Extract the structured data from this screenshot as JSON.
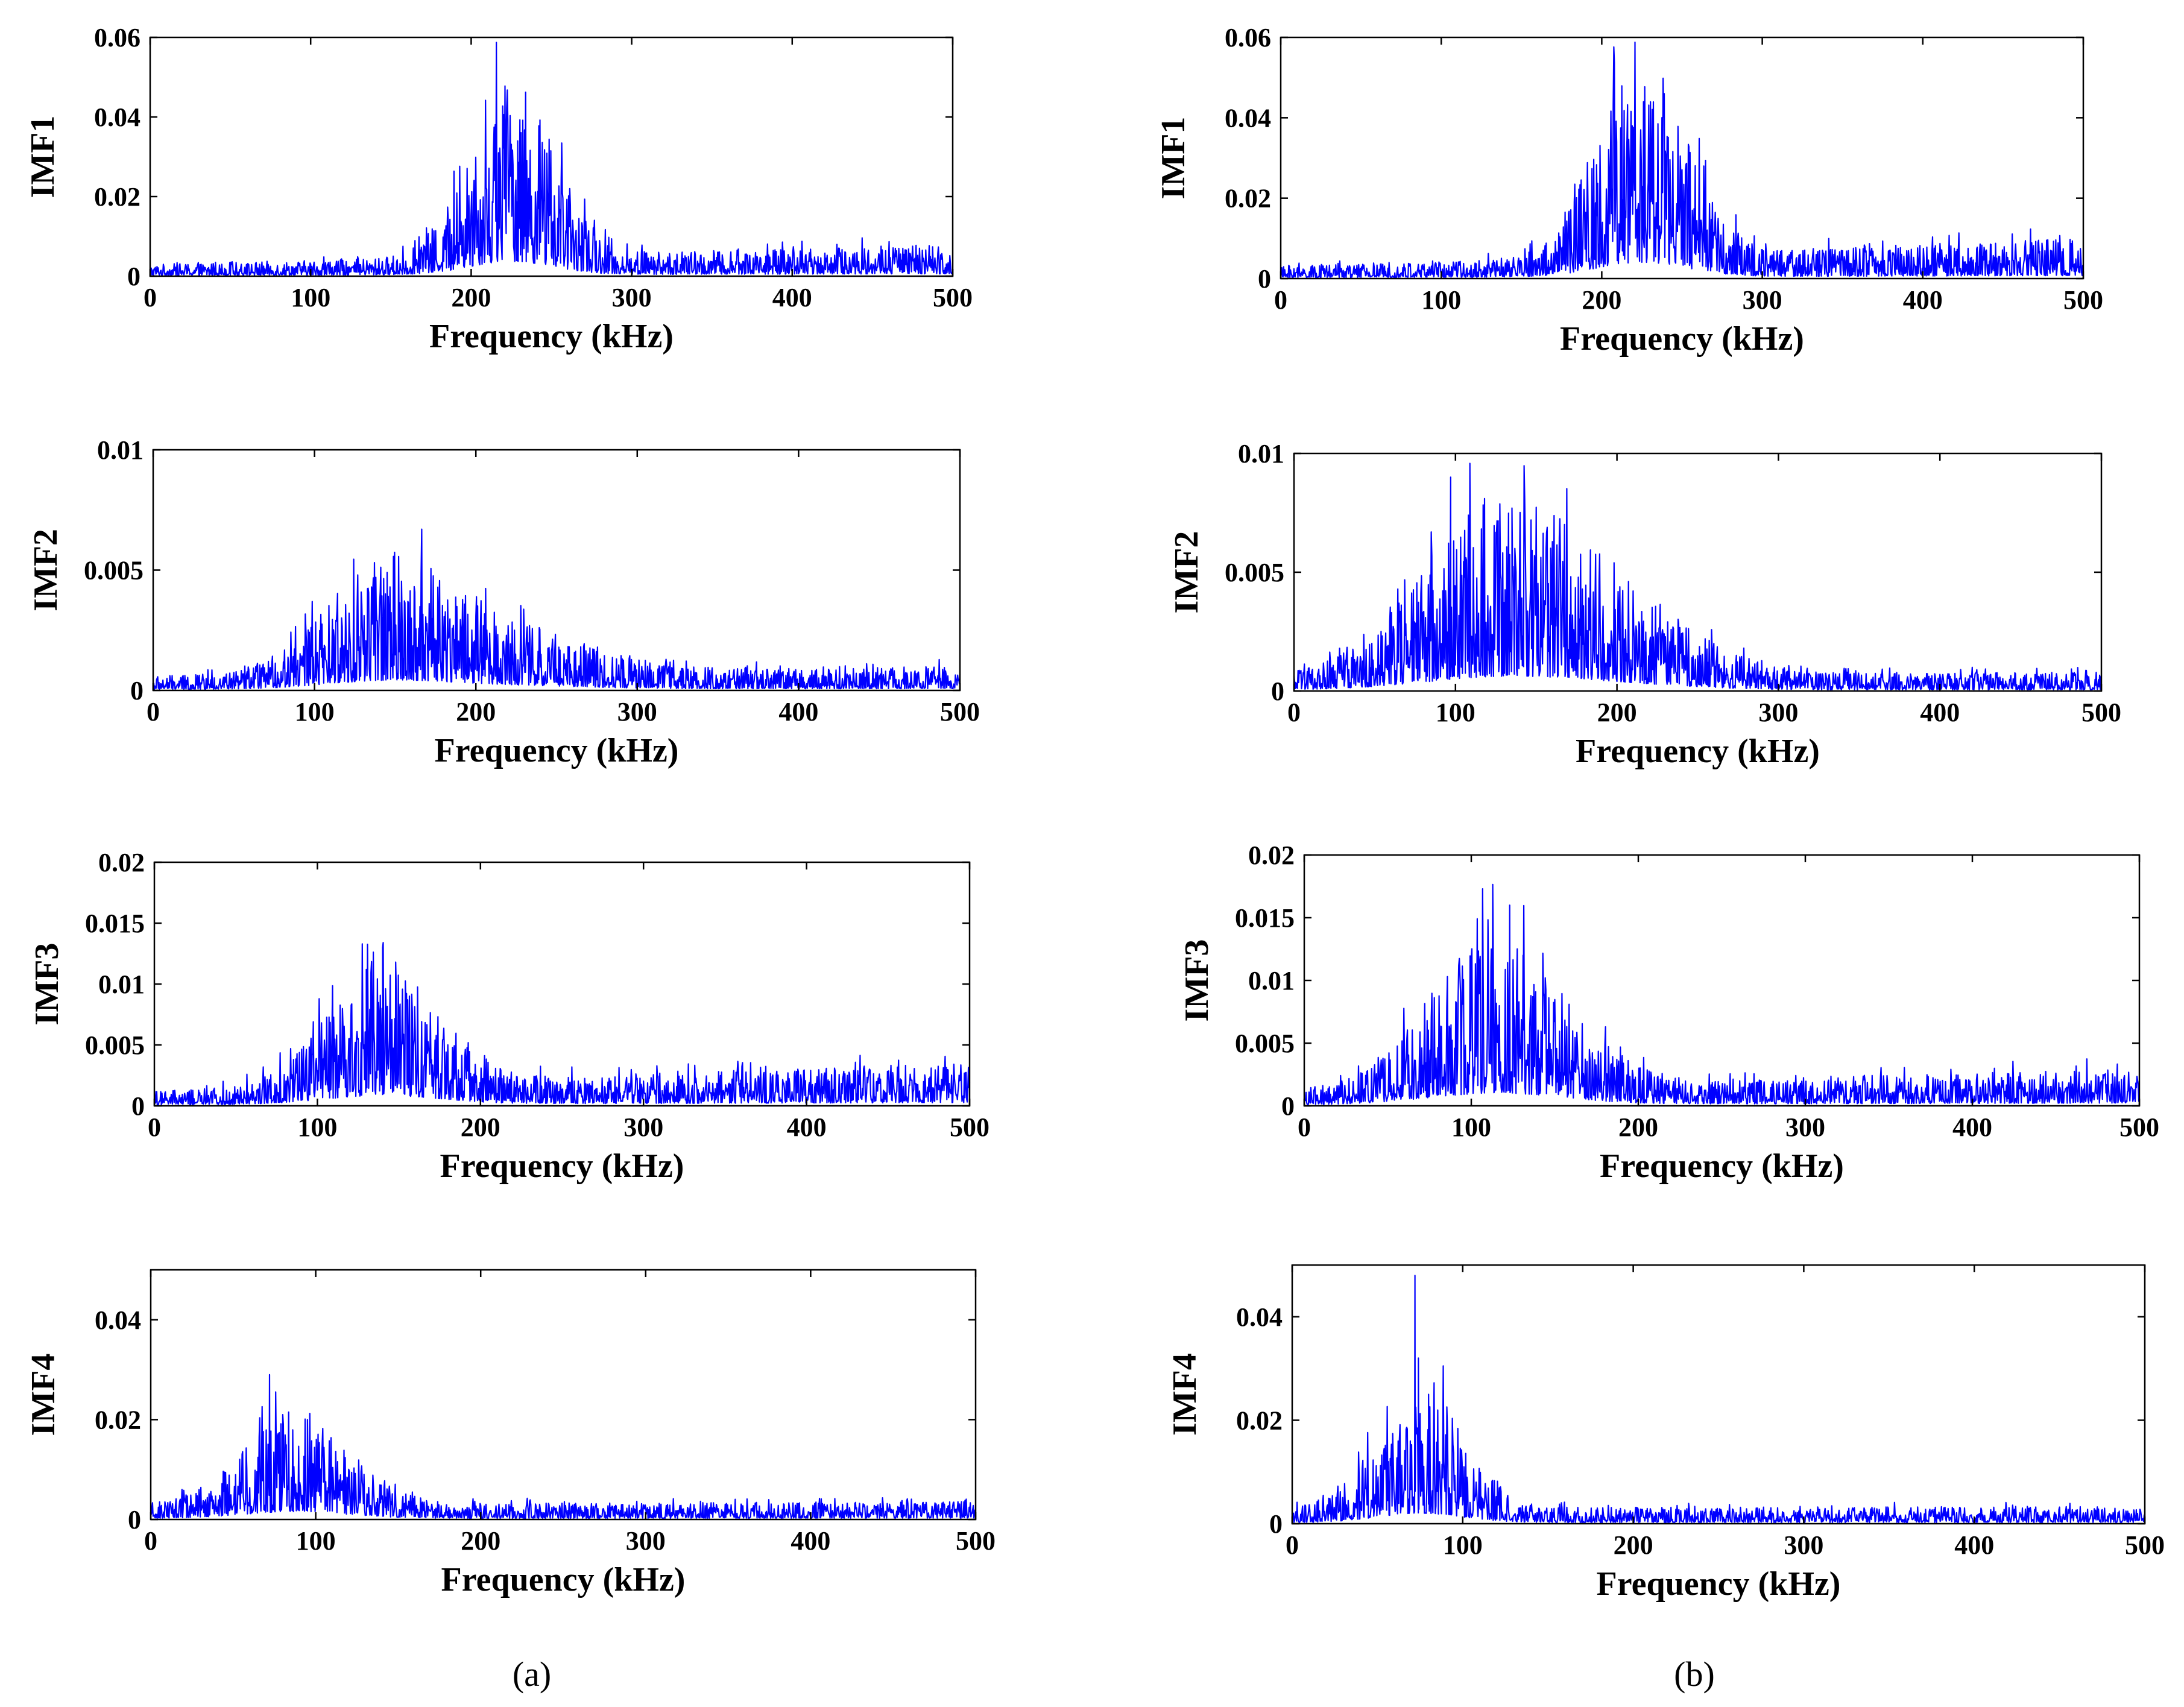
{
  "figure": {
    "captions": [
      "(a)",
      "(b)"
    ]
  },
  "chart_data": [
    {
      "type": "line",
      "id": "a1",
      "column": "a",
      "ylabel": "IMF1",
      "xlabel": "Frequency (kHz)",
      "xlim": [
        0,
        500
      ],
      "ylim": [
        0,
        0.06
      ],
      "xticks": [
        "0",
        "100",
        "200",
        "300",
        "400",
        "500"
      ],
      "yticks": [
        "0",
        "0.02",
        "0.04",
        "0.06"
      ],
      "series": [
        {
          "name": "IMF1 spectrum",
          "color": "#0000ff",
          "noise_floor": 0.0015,
          "tail_level": 0.0025,
          "peaks": [
            {
              "center": 225,
              "width": 26,
              "amplitude": 0.022
            }
          ],
          "spikes": [
            {
              "x": 222,
              "value": 0.039
            },
            {
              "x": 229,
              "value": 0.034
            },
            {
              "x": 217,
              "value": 0.031
            }
          ]
        }
      ]
    },
    {
      "type": "line",
      "id": "b1",
      "column": "b",
      "ylabel": "IMF1",
      "xlabel": "Frequency (kHz)",
      "xlim": [
        0,
        500
      ],
      "ylim": [
        0,
        0.06
      ],
      "xticks": [
        "0",
        "100",
        "200",
        "300",
        "400",
        "500"
      ],
      "yticks": [
        "0",
        "0.02",
        "0.04",
        "0.06"
      ],
      "series": [
        {
          "name": "IMF1 spectrum",
          "color": "#0000ff",
          "noise_floor": 0.0015,
          "tail_level": 0.0035,
          "peaks": [
            {
              "center": 225,
              "width": 28,
              "amplitude": 0.024
            }
          ],
          "spikes": [
            {
              "x": 226,
              "value": 0.044
            },
            {
              "x": 219,
              "value": 0.038
            },
            {
              "x": 232,
              "value": 0.036
            }
          ]
        }
      ]
    },
    {
      "type": "line",
      "id": "a2",
      "column": "a",
      "ylabel": "IMF2",
      "xlabel": "Frequency (kHz)",
      "xlim": [
        0,
        500
      ],
      "ylim": [
        0,
        0.01
      ],
      "xticks": [
        "0",
        "100",
        "200",
        "300",
        "400",
        "500"
      ],
      "yticks": [
        "0",
        "0.005",
        "0.01"
      ],
      "series": [
        {
          "name": "IMF2 spectrum",
          "color": "#0000ff",
          "noise_floor": 0.0003,
          "tail_level": 0.0002,
          "peaks": [
            {
              "center": 145,
              "width": 38,
              "amplitude": 0.0022
            },
            {
              "center": 220,
              "width": 50,
              "amplitude": 0.0009
            }
          ],
          "spikes": [
            {
              "x": 145,
              "value": 0.0049
            },
            {
              "x": 138,
              "value": 0.0047
            }
          ]
        }
      ]
    },
    {
      "type": "line",
      "id": "b2",
      "column": "b",
      "ylabel": "IMF2",
      "xlabel": "Frequency (kHz)",
      "xlim": [
        0,
        500
      ],
      "ylim": [
        0,
        0.01
      ],
      "xticks": [
        "0",
        "100",
        "200",
        "300",
        "400",
        "500"
      ],
      "yticks": [
        "0",
        "0.005",
        "0.01"
      ],
      "series": [
        {
          "name": "IMF2 spectrum",
          "color": "#0000ff",
          "noise_floor": 0.0003,
          "tail_level": 0.0001,
          "peaks": [
            {
              "center": 130,
              "width": 50,
              "amplitude": 0.0036
            },
            {
              "center": 210,
              "width": 45,
              "amplitude": 0.001
            }
          ],
          "spikes": [
            {
              "x": 97,
              "value": 0.009
            },
            {
              "x": 118,
              "value": 0.0081
            },
            {
              "x": 135,
              "value": 0.0077
            },
            {
              "x": 108,
              "value": 0.0074
            }
          ]
        }
      ]
    },
    {
      "type": "line",
      "id": "a3",
      "column": "a",
      "ylabel": "IMF3",
      "xlabel": "Frequency (kHz)",
      "xlim": [
        0,
        500
      ],
      "ylim": [
        0,
        0.02
      ],
      "xticks": [
        "0",
        "100",
        "200",
        "300",
        "400",
        "500"
      ],
      "yticks": [
        "0",
        "0.005",
        "0.01",
        "0.015",
        "0.02"
      ],
      "series": [
        {
          "name": "IMF3 spectrum",
          "color": "#0000ff",
          "noise_floor": 0.0006,
          "tail_level": 0.0012,
          "peaks": [
            {
              "center": 140,
              "width": 35,
              "amplitude": 0.0048
            }
          ],
          "spikes": [
            {
              "x": 140,
              "value": 0.013
            },
            {
              "x": 148,
              "value": 0.0118
            },
            {
              "x": 130,
              "value": 0.0112
            }
          ]
        }
      ]
    },
    {
      "type": "line",
      "id": "b3",
      "column": "b",
      "ylabel": "IMF3",
      "xlabel": "Frequency (kHz)",
      "xlim": [
        0,
        500
      ],
      "ylim": [
        0,
        0.02
      ],
      "xticks": [
        "0",
        "100",
        "200",
        "300",
        "400",
        "500"
      ],
      "yticks": [
        "0",
        "0.005",
        "0.01",
        "0.015",
        "0.02"
      ],
      "series": [
        {
          "name": "IMF3 spectrum",
          "color": "#0000ff",
          "noise_floor": 0.0006,
          "tail_level": 0.0009,
          "peaks": [
            {
              "center": 115,
              "width": 40,
              "amplitude": 0.006
            }
          ],
          "spikes": [
            {
              "x": 123,
              "value": 0.016
            },
            {
              "x": 112,
              "value": 0.0125
            },
            {
              "x": 131,
              "value": 0.012
            }
          ]
        }
      ]
    },
    {
      "type": "line",
      "id": "a4",
      "column": "a",
      "ylabel": "IMF4",
      "xlabel": "Frequency (kHz)",
      "xlim": [
        0,
        500
      ],
      "ylim": [
        0,
        0.05
      ],
      "xticks": [
        "0",
        "100",
        "200",
        "300",
        "400",
        "500"
      ],
      "yticks": [
        "0",
        "0.02",
        "0.04"
      ],
      "series": [
        {
          "name": "IMF4 spectrum",
          "color": "#0000ff",
          "noise_floor": 0.0015,
          "tail_level": 0.0003,
          "peaks": [
            {
              "center": 88,
              "width": 32,
              "amplitude": 0.009
            }
          ],
          "spikes": [
            {
              "x": 72,
              "value": 0.029
            },
            {
              "x": 80,
              "value": 0.021
            },
            {
              "x": 95,
              "value": 0.02
            }
          ]
        }
      ]
    },
    {
      "type": "line",
      "id": "b4",
      "column": "b",
      "ylabel": "IMF4",
      "xlabel": "Frequency (kHz)",
      "xlim": [
        0,
        500
      ],
      "ylim": [
        0,
        0.05
      ],
      "xticks": [
        "0",
        "100",
        "200",
        "300",
        "400",
        "500"
      ],
      "yticks": [
        "0",
        "0.02",
        "0.04"
      ],
      "series": [
        {
          "name": "IMF4 spectrum",
          "color": "#0000ff",
          "noise_floor": 0.0015,
          "tail_level": 0.0002,
          "peaks": [
            {
              "center": 75,
              "width": 25,
              "amplitude": 0.012
            }
          ],
          "spikes": [
            {
              "x": 72,
              "value": 0.048
            },
            {
              "x": 74,
              "value": 0.032
            },
            {
              "x": 80,
              "value": 0.025
            }
          ]
        }
      ]
    }
  ]
}
